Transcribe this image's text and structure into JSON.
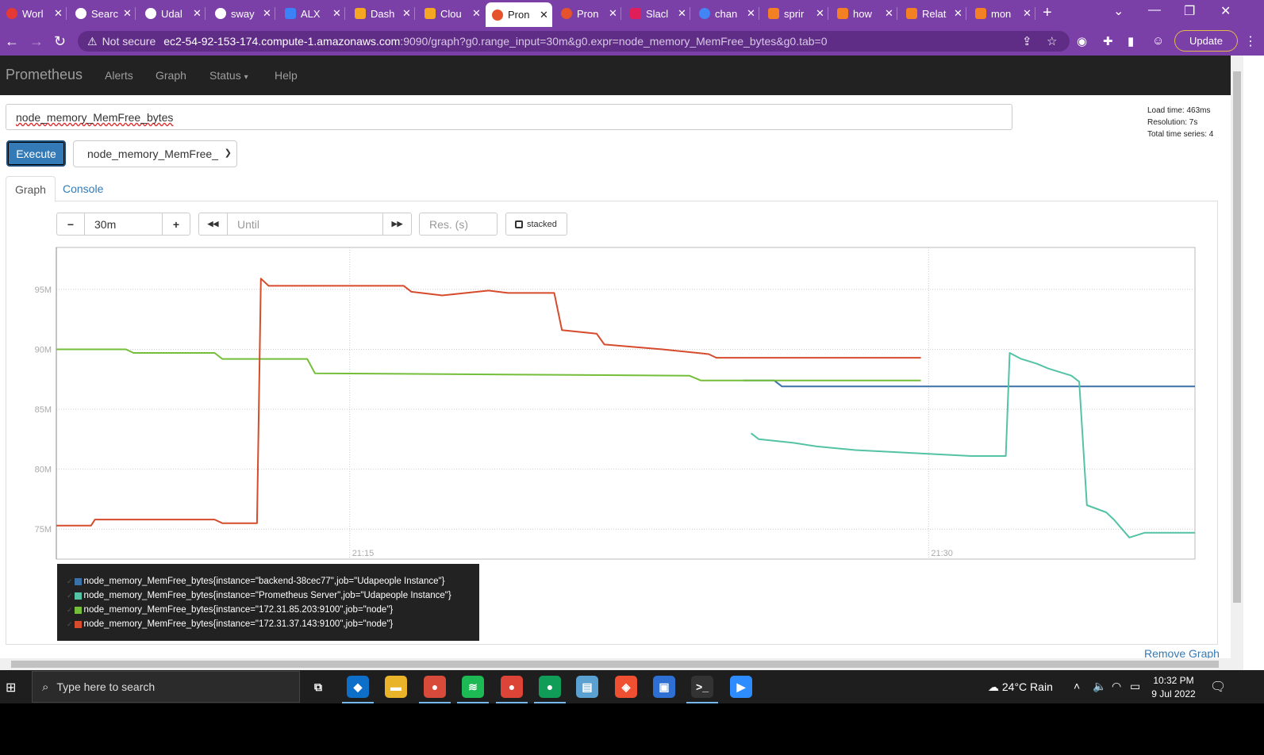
{
  "browser": {
    "tabs": [
      {
        "title": "Worl",
        "favicon": "red-circle",
        "color": "#e53935"
      },
      {
        "title": "Searc",
        "favicon": "github",
        "color": "#ffffff"
      },
      {
        "title": "Udal",
        "favicon": "github",
        "color": "#ffffff"
      },
      {
        "title": "sway",
        "favicon": "github",
        "color": "#ffffff"
      },
      {
        "title": "ALX",
        "favicon": "alx",
        "color": "#3b82f6"
      },
      {
        "title": "Dash",
        "favicon": "aws-box",
        "color": "#f5a623"
      },
      {
        "title": "Clou",
        "favicon": "aws-box",
        "color": "#f5a623"
      },
      {
        "title": "Pron",
        "favicon": "prometheus",
        "color": "#e6522c"
      },
      {
        "title": "Pron",
        "favicon": "prometheus",
        "color": "#e6522c"
      },
      {
        "title": "Slacl",
        "favicon": "slack",
        "color": "#e01e5a"
      },
      {
        "title": "chan",
        "favicon": "google",
        "color": "#4285f4"
      },
      {
        "title": "sprir",
        "favicon": "stackoverflow",
        "color": "#f48024"
      },
      {
        "title": "how",
        "favicon": "stackoverflow",
        "color": "#f48024"
      },
      {
        "title": "Relat",
        "favicon": "stackoverflow",
        "color": "#f48024"
      },
      {
        "title": "mon",
        "favicon": "stackoverflow",
        "color": "#f48024"
      }
    ],
    "active_tab": 7,
    "new_tab": "+",
    "not_secure": "Not secure",
    "url_host": "ec2-54-92-153-174.compute-1.amazonaws.com",
    "url_rest": ":9090/graph?g0.range_input=30m&g0.expr=node_memory_MemFree_bytes&g0.tab=0",
    "update_label": "Update"
  },
  "prometheus": {
    "brand": "Prometheus",
    "nav": [
      "Alerts",
      "Graph",
      "Status",
      "Help"
    ],
    "status_caret": "▾",
    "expression": "node_memory_MemFree_bytes",
    "stats": {
      "load_time": "Load time: 463ms",
      "resolution": "Resolution: 7s",
      "total_series": "Total time series: 4"
    },
    "execute_label": "Execute",
    "metric_select": "node_memory_MemFree_",
    "tabs": [
      "Graph",
      "Console"
    ],
    "range_minus": "−",
    "range_value": "30m",
    "range_plus": "+",
    "rewind": "◀◀",
    "until_placeholder": "Until",
    "forward": "▶▶",
    "res_placeholder": "Res. (s)",
    "stacked_label": "stacked",
    "remove_graph": "Remove Graph"
  },
  "chart_data": {
    "type": "line",
    "y_unit": "bytes",
    "ylim": [
      72.5,
      98.5
    ],
    "y_ticks": [
      75,
      80,
      85,
      90,
      95
    ],
    "y_tick_labels": [
      "75M",
      "80M",
      "85M",
      "90M",
      "95M"
    ],
    "x_tick_labels": [
      "21:15",
      "21:30"
    ],
    "x_range": [
      "21:07:24",
      "21:36:54"
    ],
    "grid": true,
    "series": [
      {
        "name": "node_memory_MemFree_bytes{instance=\"backend-38cec77\",job=\"Udapeople Instance\"}",
        "color": "#3a71a8",
        "points": [
          [
            "21:25:12",
            87.4
          ],
          [
            "21:26:00",
            87.4
          ],
          [
            "21:26:12",
            86.9
          ],
          [
            "21:36:54",
            86.9
          ]
        ]
      },
      {
        "name": "node_memory_MemFree_bytes{instance=\"Prometheus Server\",job=\"Udapeople Instance\"}",
        "color": "#53c2a5",
        "points": [
          [
            "21:25:24",
            83.0
          ],
          [
            "21:25:36",
            82.5
          ],
          [
            "21:26:30",
            82.2
          ],
          [
            "21:27:06",
            81.9
          ],
          [
            "21:28:06",
            81.6
          ],
          [
            "21:29:18",
            81.4
          ],
          [
            "21:31:06",
            81.1
          ],
          [
            "21:32:00",
            81.1
          ],
          [
            "21:32:06",
            89.7
          ],
          [
            "21:32:24",
            89.2
          ],
          [
            "21:32:48",
            88.8
          ],
          [
            "21:33:06",
            88.4
          ],
          [
            "21:33:42",
            87.8
          ],
          [
            "21:33:54",
            87.3
          ],
          [
            "21:34:06",
            77.0
          ],
          [
            "21:34:36",
            76.4
          ],
          [
            "21:34:48",
            75.8
          ],
          [
            "21:35:12",
            74.3
          ],
          [
            "21:35:36",
            74.7
          ],
          [
            "21:36:54",
            74.7
          ]
        ]
      },
      {
        "name": "node_memory_MemFree_bytes{instance=\"172.31.85.203:9100\",job=\"node\"}",
        "color": "#74be3a",
        "points": [
          [
            "21:07:24",
            90.0
          ],
          [
            "21:09:12",
            90.0
          ],
          [
            "21:09:24",
            89.7
          ],
          [
            "21:11:30",
            89.7
          ],
          [
            "21:11:42",
            89.2
          ],
          [
            "21:13:54",
            89.2
          ],
          [
            "21:14:06",
            88.0
          ],
          [
            "21:23:48",
            87.8
          ],
          [
            "21:24:06",
            87.4
          ],
          [
            "21:29:48",
            87.4
          ]
        ]
      },
      {
        "name": "node_memory_MemFree_bytes{instance=\"172.31.37.143:9100\",job=\"node\"}",
        "color": "#d64b2c",
        "points": [
          [
            "21:07:24",
            75.3
          ],
          [
            "21:08:18",
            75.3
          ],
          [
            "21:08:24",
            75.8
          ],
          [
            "21:11:30",
            75.8
          ],
          [
            "21:11:42",
            75.5
          ],
          [
            "21:12:36",
            75.5
          ],
          [
            "21:12:42",
            95.9
          ],
          [
            "21:12:54",
            95.3
          ],
          [
            "21:16:24",
            95.3
          ],
          [
            "21:16:36",
            94.8
          ],
          [
            "21:17:24",
            94.5
          ],
          [
            "21:18:36",
            94.9
          ],
          [
            "21:19:06",
            94.7
          ],
          [
            "21:20:18",
            94.7
          ],
          [
            "21:20:30",
            91.6
          ],
          [
            "21:21:24",
            91.3
          ],
          [
            "21:21:36",
            90.4
          ],
          [
            "21:23:06",
            90.0
          ],
          [
            "21:24:18",
            89.6
          ],
          [
            "21:24:30",
            89.3
          ],
          [
            "21:29:48",
            89.3
          ]
        ]
      }
    ]
  },
  "taskbar": {
    "search_placeholder": "Type here to search",
    "apps": [
      {
        "name": "task-view",
        "color": "#1e1e1e",
        "glyph": "⧉"
      },
      {
        "name": "vscode",
        "color": "#0e6fc9",
        "glyph": "◆"
      },
      {
        "name": "file-explorer",
        "color": "#e9b32a",
        "glyph": "▬"
      },
      {
        "name": "chrome-profile",
        "color": "#d84a3a",
        "glyph": "●"
      },
      {
        "name": "spotify",
        "color": "#1db954",
        "glyph": "≋"
      },
      {
        "name": "chrome",
        "color": "#db4437",
        "glyph": "●"
      },
      {
        "name": "chrome-2",
        "color": "#0f9d58",
        "glyph": "●"
      },
      {
        "name": "notepad",
        "color": "#5aa0d0",
        "glyph": "▤"
      },
      {
        "name": "git",
        "color": "#f05032",
        "glyph": "◈"
      },
      {
        "name": "remote-desktop",
        "color": "#2d6fd2",
        "glyph": "▣"
      },
      {
        "name": "terminal",
        "color": "#333333",
        "glyph": ">_"
      },
      {
        "name": "zoom",
        "color": "#2d8cff",
        "glyph": "▶"
      }
    ],
    "weather": "24°C  Rain",
    "time": "10:32 PM",
    "date": "9 Jul 2022"
  }
}
